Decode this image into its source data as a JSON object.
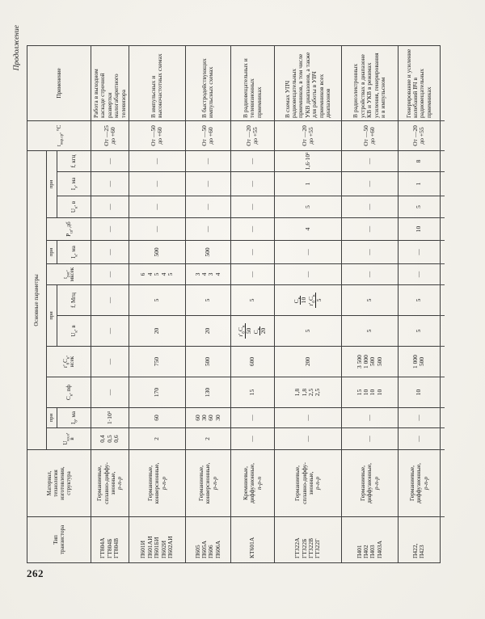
{
  "page": {
    "continuation_label": "Продолжение",
    "page_number": "262"
  },
  "table": {
    "headers": {
      "tip": "Тип|транзистора",
      "material": "Материал,|технология|изготовления,|структура",
      "main_params": "Основные параметры",
      "u_ken": "U_{кэ.н},|в",
      "pri": "при",
      "i_b": "I_{б}, ма",
      "c_k": "C_{к}, пф",
      "rbck": "r'_{б}C_{к},|нсек",
      "u_k1": "U_{к}, в",
      "f_mhz": "f, Мгц",
      "t_ras": "t_{рас},|мксек",
      "i_k": "I_{к}, ма",
      "p_sh": "P_{ш}, дб",
      "u_k2": "U_{к}, в",
      "i_e": "I_{э}, ма",
      "f_khz": "f, кгц",
      "t_okr": "t_{окр.ср}, °С",
      "primenenie": "Применение"
    },
    "rows": [
      {
        "types": "ГТ804А|ГТ804Б|ГТ804В",
        "material": "Германиевые,|сплавно-диффу-|зионные,|p-n-p",
        "u_ken": "0,4|0,5|0,6",
        "i_b": "1·10³",
        "c_k": "—",
        "rbck": "—",
        "u_k1": "—",
        "f_mhz": "—",
        "t_ras": "—",
        "i_k": "—",
        "p_sh": "—",
        "u_k2": "—",
        "i_e": "—",
        "f_khz": "—",
        "t_okr": "От —25|до +60",
        "app": "Работа в выходном каскаде строчной развертки малогабаритного телевизора"
      },
      {
        "types": "П601И|П601АИ|П601БИ|П602И|П602АИ",
        "material": "Германиевые,|конверсионные,|p-n-p",
        "u_ken": "2",
        "i_b": "60",
        "c_k": "170",
        "rbck": "750",
        "u_k1": "20",
        "f_mhz": "5",
        "t_ras": "6|4|5|4|5",
        "i_k": "500",
        "p_sh": "—",
        "u_k2": "—",
        "i_e": "—",
        "f_khz": "—",
        "t_okr": "От —50|до +60",
        "app": "В импульсных и высокочастотных схемах"
      },
      {
        "types": "П605|П605А|П606|П606А",
        "material": "Германиевые,|конверсионные,|p-n-p",
        "u_ken": "2",
        "i_b": "60|30|60|30",
        "c_k": "130",
        "rbck": "500",
        "u_k1": "20",
        "f_mhz": "5",
        "t_ras": "3|4|3|4",
        "i_k": "500",
        "p_sh": "—",
        "u_k2": "—",
        "i_e": "—",
        "f_khz": "—",
        "t_okr": "От —50|до +60",
        "app": "В быстродействующих импульсных схемах"
      },
      {
        "types": "КТ601А",
        "material": "Кремниевые,|диффузионные,|n-p-n",
        "u_ken": "—",
        "i_b": "—",
        "c_k": "15",
        "rbck": "600",
        "u_k1": "r'_{б}C_{к}/50|C_{к}/20",
        "f_mhz": "5",
        "t_ras": "—",
        "i_k": "—",
        "p_sh": "—",
        "u_k2": "—",
        "i_e": "—",
        "f_khz": "—",
        "t_okr": "От —20|до +55",
        "app": "В радиовещательных и телевизионных приемниках"
      },
      {
        "types": "ГТ322А|ГТ322Б|ГТ322В|ГТ322Г",
        "material": "Германиевые,|сплавно-диффу-|зионные,|p-n-p",
        "u_ken": "—",
        "i_b": "—",
        "c_k": "1,8|1,8|2,5|2,5",
        "rbck": "200",
        "u_k1": "5",
        "f_mhz": "C_{к}/10|r'_{б}C_{к}/5",
        "t_ras": "—",
        "i_k": "—",
        "p_sh": "4",
        "u_k2": "5",
        "i_e": "1",
        "f_khz": "1,6·10³",
        "t_okr": "От —20|до +55",
        "app": "В схемах УПЧ радиовещательных приемников, в том числе УКВ диапазонов, а также для работы в УВЧ приемников всех диапазонов"
      },
      {
        "types": "П401|П402|П403|П403А",
        "material": "Германиевые,|диффузионные,|p-n-p",
        "u_ken": "—",
        "i_b": "—",
        "c_k": "15|10|10|10",
        "rbck": "3 500|1 000|500|500",
        "u_k1": "5",
        "f_mhz": "5",
        "t_ras": "—",
        "i_k": "—",
        "p_sh": "—",
        "u_k2": "—",
        "i_e": "—",
        "f_khz": "—",
        "t_okr": "От —50|до +60",
        "app": "В радиоэлектронных устройствах в диапазоне КВ и УКВ в режимах усиления, генерирования и в импульсном"
      },
      {
        "types": "П422,|П423",
        "material": "Германиевые,|диффузионные,|p-n-p",
        "u_ken": "—",
        "i_b": "—",
        "c_k": "10",
        "rbck": "1 000|500",
        "u_k1": "5",
        "f_mhz": "5",
        "t_ras": "—",
        "i_k": "—",
        "p_sh": "10",
        "u_k2": "5",
        "i_e": "1",
        "f_khz": "8",
        "t_okr": "От —20|до +55",
        "app": "Генерирование и усиление колебаний ВЧ в радиовещательных приемниках"
      }
    ]
  }
}
